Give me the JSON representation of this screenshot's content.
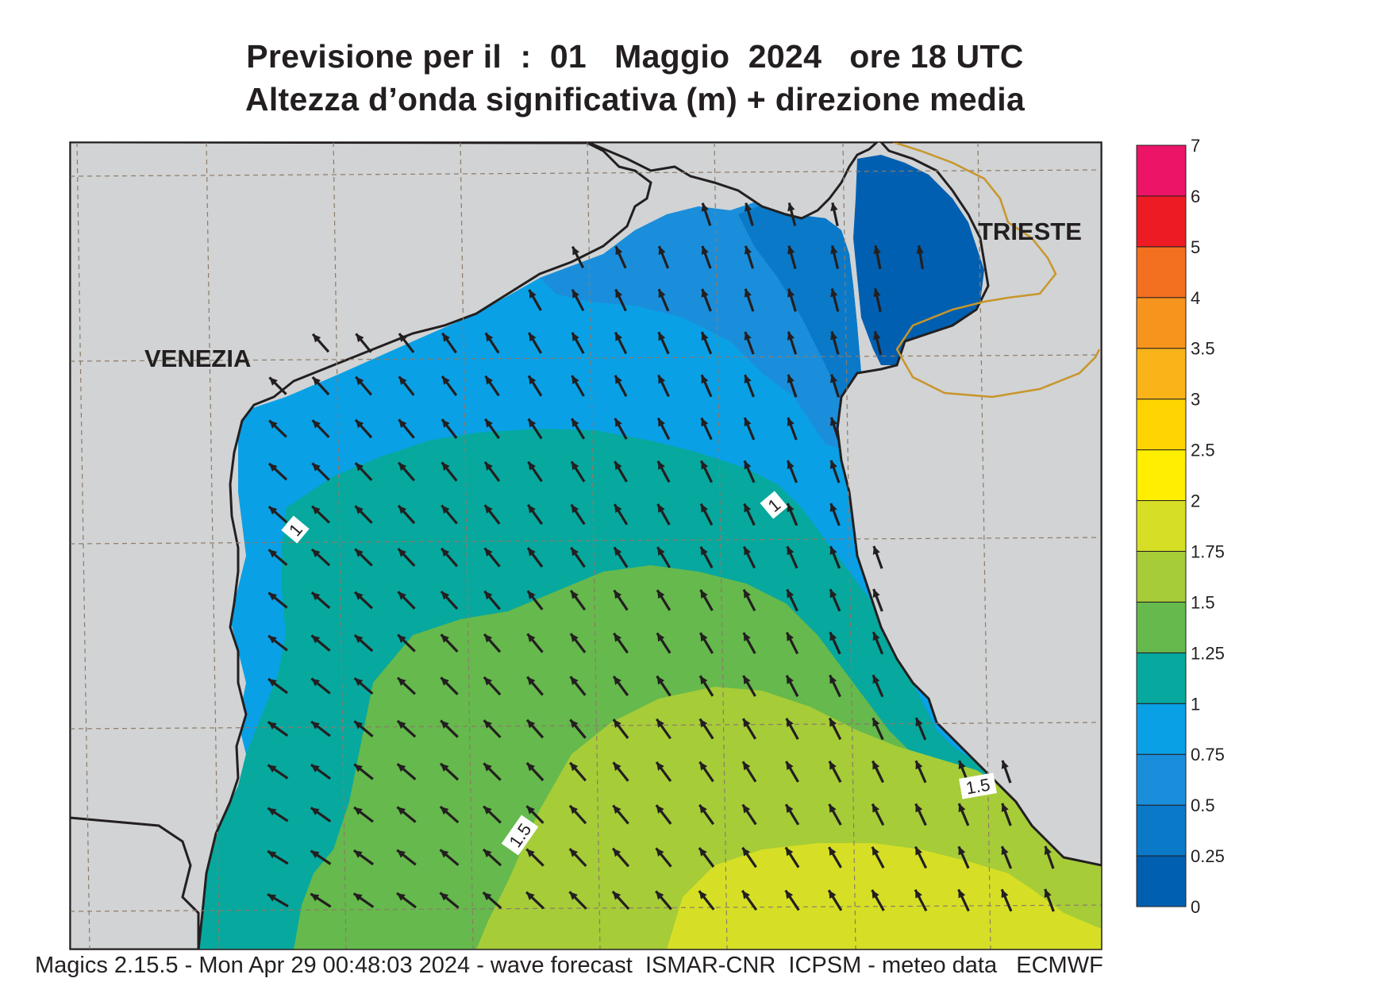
{
  "header": {
    "title_line1": "Previsione per il  :  01   Maggio  2024   ore 18 UTC",
    "title_line2": "Altezza d’onda significativa (m) + direzione media"
  },
  "labels": {
    "venezia": "VENEZIA",
    "trieste": "TRIESTE"
  },
  "contour_labels": [
    "1",
    "1",
    "1.5",
    "1.5"
  ],
  "legend": {
    "unit": "m",
    "bins": [
      {
        "from": "0",
        "to": "0.25",
        "color": "#005fb0"
      },
      {
        "from": "0.25",
        "to": "0.5",
        "color": "#0a79c8"
      },
      {
        "from": "0.5",
        "to": "0.75",
        "color": "#1b8edb"
      },
      {
        "from": "0.75",
        "to": "1",
        "color": "#0aa0e6"
      },
      {
        "from": "1",
        "to": "1.25",
        "color": "#07a89e"
      },
      {
        "from": "1.25",
        "to": "1.5",
        "color": "#66b94c"
      },
      {
        "from": "1.5",
        "to": "1.75",
        "color": "#a6cc38"
      },
      {
        "from": "1.75",
        "to": "2",
        "color": "#d6df25"
      },
      {
        "from": "2",
        "to": "2.5",
        "color": "#ffee00"
      },
      {
        "from": "2.5",
        "to": "3",
        "color": "#ffd400"
      },
      {
        "from": "3",
        "to": "3.5",
        "color": "#fbb31a"
      },
      {
        "from": "3.5",
        "to": "4",
        "color": "#f7941d"
      },
      {
        "from": "4",
        "to": "5",
        "color": "#f37021"
      },
      {
        "from": "5",
        "to": "6",
        "color": "#ed1c24"
      },
      {
        "from": "6",
        "to": "7",
        "color": "#ec1467"
      }
    ],
    "tick_labels": [
      "0",
      "0.25",
      "0.5",
      "0.75",
      "1",
      "1.25",
      "1.5",
      "1.75",
      "2",
      "2.5",
      "3",
      "3.5",
      "4",
      "5",
      "6",
      "7"
    ]
  },
  "colors": {
    "land": "#d1d3d4",
    "coast": "#231f20",
    "border": "#c8962a",
    "grid": "#8c7b6a",
    "arrow": "#231f20"
  },
  "wave_direction": "towards north-west",
  "footer": {
    "text": "Magics 2.15.5 - Mon Apr 29 00:48:03 2024 - wave forecast  ISMAR-CNR  ICPSM - meteo data   ECMWF"
  }
}
